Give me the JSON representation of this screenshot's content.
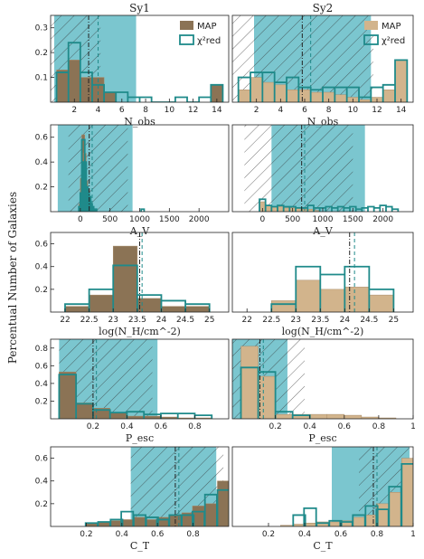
{
  "figure": {
    "ylabel": "Percentual Number of Galaxies",
    "colors": {
      "map_sy1": "#8b7355",
      "map_sy2": "#d2b48c",
      "chi2": "#1f8a8a",
      "shade": "#4fb3bf",
      "dash_line": "#1f8a8a",
      "dashdot_line": "#222222"
    },
    "legend": {
      "map": "MAP",
      "chi": "χ²red"
    }
  },
  "chart_data": [
    {
      "type": "bar",
      "id": "sy1-nobs",
      "title": "Sy1",
      "xlabel": "N_obs",
      "xlim": [
        0,
        15
      ],
      "ylim": [
        0,
        0.35
      ],
      "xticks": [
        2,
        4,
        6,
        8,
        10,
        12,
        14
      ],
      "yticks": [
        0.1,
        0.2,
        0.3
      ],
      "binw": 1,
      "map": {
        "x": [
          1,
          2,
          3,
          4,
          5,
          6,
          7,
          8,
          9,
          10,
          11,
          12,
          13,
          14
        ],
        "y": [
          0.13,
          0.17,
          0.1,
          0.1,
          0.04,
          0,
          0,
          0,
          0,
          0,
          0,
          0,
          0,
          0.07
        ]
      },
      "chi": {
        "x": [
          1,
          2,
          3,
          4,
          5,
          6,
          7,
          8,
          9,
          10,
          11,
          12,
          13,
          14
        ],
        "y": [
          0.12,
          0.24,
          0.12,
          0.07,
          0.04,
          0.04,
          0.02,
          0.02,
          0,
          0,
          0.02,
          0,
          0.02,
          0.07
        ]
      },
      "shade": [
        0.3,
        7.2
      ],
      "dashed": 4.0,
      "dashdot": 3.2,
      "hatch": [
        0,
        4.2
      ],
      "legend": true
    },
    {
      "type": "bar",
      "id": "sy2-nobs",
      "title": "Sy2",
      "xlabel": "N_obs",
      "xlim": [
        0,
        15
      ],
      "ylim": [
        0,
        0.35
      ],
      "xticks": [
        2,
        4,
        6,
        8,
        10,
        12,
        14
      ],
      "yticks": [],
      "binw": 1,
      "map": {
        "x": [
          1,
          2,
          3,
          4,
          5,
          6,
          7,
          8,
          9,
          10,
          11,
          12,
          13,
          14
        ],
        "y": [
          0.05,
          0.1,
          0.08,
          0.07,
          0.05,
          0.05,
          0.04,
          0.04,
          0.03,
          0.02,
          0.01,
          0.02,
          0.05,
          0.17
        ]
      },
      "chi": {
        "x": [
          1,
          2,
          3,
          4,
          5,
          6,
          7,
          8,
          9,
          10,
          11,
          12,
          13,
          14
        ],
        "y": [
          0.1,
          0.12,
          0.12,
          0.08,
          0.1,
          0.06,
          0.05,
          0.06,
          0.06,
          0.06,
          0.02,
          0.06,
          0.07,
          0.17
        ]
      },
      "shade": [
        1.8,
        11.5
      ],
      "dashed": 6.5,
      "dashdot": 5.8,
      "hatch": [
        0,
        11.7
      ],
      "legend": true
    },
    {
      "type": "bar",
      "id": "sy1-av",
      "title": "",
      "xlabel": "A_V",
      "xlim": [
        -500,
        2500
      ],
      "ylim": [
        0,
        0.7
      ],
      "xticks": [
        0,
        500,
        1000,
        1500,
        2000
      ],
      "yticks": [
        0.2,
        0.4,
        0.6
      ],
      "binw": 50,
      "map": {
        "x": [
          0,
          25,
          50,
          75,
          100,
          125,
          150,
          175,
          200,
          225,
          250
        ],
        "y": [
          0.06,
          0.27,
          0.62,
          0.47,
          0.25,
          0.18,
          0.1,
          0.04,
          0.03,
          0.02,
          0.02
        ]
      },
      "chi": {
        "x": [
          0,
          25,
          50,
          75,
          100,
          125,
          150,
          175,
          200,
          225,
          250,
          1050
        ],
        "y": [
          0.04,
          0.15,
          0.58,
          0.4,
          0.2,
          0.15,
          0.12,
          0.06,
          0.04,
          0.02,
          0.02,
          0.02
        ]
      },
      "shade": [
        -380,
        880
      ],
      "dashed": 200,
      "dashdot": 150,
      "hatch": [
        -200,
        800
      ],
      "legend": false
    },
    {
      "type": "bar",
      "id": "sy2-av",
      "title": "",
      "xlabel": "A_V",
      "xlim": [
        -500,
        2500
      ],
      "ylim": [
        0,
        0.7
      ],
      "xticks": [
        0,
        500,
        1000,
        1500,
        2000
      ],
      "yticks": [],
      "binw": 100,
      "map": {
        "x": [
          0,
          100,
          200,
          300,
          400,
          500,
          600,
          700,
          800,
          900
        ],
        "y": [
          0.08,
          0.05,
          0.04,
          0.04,
          0.03,
          0.03,
          0.03,
          0.02,
          0.02,
          0.01
        ]
      },
      "chi": {
        "x": [
          0,
          100,
          200,
          300,
          400,
          500,
          600,
          700,
          800,
          900,
          1000,
          1100,
          1200,
          1300,
          1400,
          1500,
          1600,
          1700,
          1800,
          1900,
          2000,
          2100,
          2200
        ],
        "y": [
          0.1,
          0.05,
          0.04,
          0.05,
          0.04,
          0.04,
          0.03,
          0.03,
          0.05,
          0.03,
          0.03,
          0.04,
          0.03,
          0.04,
          0.03,
          0.04,
          0.02,
          0.03,
          0.04,
          0.03,
          0.05,
          0.04,
          0.02
        ]
      },
      "shade": [
        150,
        1700
      ],
      "dashed": 700,
      "dashdot": 650,
      "hatch": [
        -300,
        1500
      ],
      "legend": false
    },
    {
      "type": "bar",
      "id": "sy1-nh",
      "title": "",
      "xlabel": "log(N_H/cm^-2)",
      "xlim": [
        21.7,
        25.4
      ],
      "ylim": [
        0,
        0.7
      ],
      "xticks": [
        22.0,
        22.5,
        23.0,
        23.5,
        24.0,
        24.5,
        25.0
      ],
      "yticks": [
        0.2,
        0.4,
        0.6
      ],
      "binw": 0.5,
      "map": {
        "x": [
          22.25,
          22.75,
          23.25,
          23.75,
          24.25,
          24.75
        ],
        "y": [
          0.05,
          0.15,
          0.58,
          0.12,
          0.05,
          0.05
        ]
      },
      "chi": {
        "x": [
          22.25,
          22.75,
          23.25,
          23.75,
          24.25,
          24.75
        ],
        "y": [
          0.07,
          0.2,
          0.41,
          0.15,
          0.1,
          0.07
        ]
      },
      "shade": null,
      "dashed": 23.6,
      "dashdot": 23.55,
      "hatch": null,
      "legend": false
    },
    {
      "type": "bar",
      "id": "sy2-nh",
      "title": "",
      "xlabel": "log(N_H/cm^-2)",
      "xlim": [
        21.7,
        25.4
      ],
      "ylim": [
        0,
        0.7
      ],
      "xticks": [
        22.0,
        22.5,
        23.0,
        23.5,
        24.0,
        24.5,
        25.0
      ],
      "yticks": [],
      "binw": 0.5,
      "map": {
        "x": [
          22.75,
          23.25,
          23.75,
          24.25,
          24.75
        ],
        "y": [
          0.1,
          0.28,
          0.2,
          0.22,
          0.15
        ]
      },
      "chi": {
        "x": [
          22.75,
          23.25,
          23.75,
          24.25,
          24.75
        ],
        "y": [
          0.07,
          0.4,
          0.33,
          0.4,
          0.2
        ]
      },
      "shade": null,
      "dashed": 24.2,
      "dashdot": 24.1,
      "hatch": null,
      "legend": false
    },
    {
      "type": "bar",
      "id": "sy1-pesc",
      "title": "",
      "xlabel": "P_esc",
      "xlim": [
        -0.05,
        1.0
      ],
      "ylim": [
        0,
        0.9
      ],
      "xticks": [
        0.2,
        0.4,
        0.6,
        0.8
      ],
      "yticks": [
        0.2,
        0.4,
        0.6,
        0.8
      ],
      "binw": 0.1,
      "map": {
        "x": [
          0.05,
          0.15,
          0.25,
          0.35,
          0.45,
          0.55,
          0.65,
          0.75,
          0.85
        ],
        "y": [
          0.53,
          0.18,
          0.12,
          0.07,
          0.03,
          0.03,
          0.02,
          0.01,
          0.01
        ]
      },
      "chi": {
        "x": [
          0.05,
          0.15,
          0.25,
          0.35,
          0.45,
          0.55,
          0.65,
          0.75,
          0.85
        ],
        "y": [
          0.5,
          0.17,
          0.1,
          0.07,
          0.08,
          0.05,
          0.06,
          0.06,
          0.04
        ]
      },
      "shade": [
        0.0,
        0.58
      ],
      "dashed": 0.22,
      "dashdot": 0.2,
      "hatch": [
        0.0,
        0.55
      ],
      "legend": false
    },
    {
      "type": "bar",
      "id": "sy2-pesc",
      "title": "",
      "xlabel": "P_esc",
      "xlim": [
        -0.05,
        1.0
      ],
      "ylim": [
        0,
        0.9
      ],
      "xticks": [
        0.2,
        0.4,
        0.6,
        0.8,
        1.0
      ],
      "yticks": [],
      "binw": 0.1,
      "map": {
        "x": [
          0.05,
          0.15,
          0.25,
          0.35,
          0.45,
          0.55,
          0.65,
          0.75,
          0.85
        ],
        "y": [
          0.82,
          0.48,
          0.05,
          0.05,
          0.05,
          0.05,
          0.04,
          0.02,
          0.01
        ]
      },
      "chi": {
        "x": [
          0.05,
          0.15,
          0.25,
          0.35
        ],
        "y": [
          0.58,
          0.53,
          0.08,
          0.04
        ]
      },
      "shade": [
        -0.05,
        0.27
      ],
      "dashed": 0.13,
      "dashdot": 0.11,
      "hatch": [
        -0.05,
        0.37
      ],
      "legend": false
    },
    {
      "type": "bar",
      "id": "sy1-ct",
      "title": "",
      "xlabel": "C_T",
      "xlim": [
        0.0,
        1.0
      ],
      "ylim": [
        0,
        0.7
      ],
      "xticks": [
        0.2,
        0.4,
        0.6,
        0.8
      ],
      "yticks": [
        0.2,
        0.4,
        0.6
      ],
      "binw": 0.067,
      "map": {
        "x": [
          0.23,
          0.3,
          0.37,
          0.43,
          0.5,
          0.57,
          0.63,
          0.7,
          0.77,
          0.83,
          0.9,
          0.97
        ],
        "y": [
          0.03,
          0.04,
          0.05,
          0.06,
          0.08,
          0.06,
          0.08,
          0.1,
          0.12,
          0.18,
          0.2,
          0.4
        ]
      },
      "chi": {
        "x": [
          0.23,
          0.3,
          0.37,
          0.43,
          0.5,
          0.57,
          0.63,
          0.7,
          0.77,
          0.83,
          0.9,
          0.97
        ],
        "y": [
          0.03,
          0.04,
          0.06,
          0.13,
          0.1,
          0.08,
          0.06,
          0.1,
          0.1,
          0.13,
          0.28,
          0.32
        ]
      },
      "shade": [
        0.45,
        0.93
      ],
      "dashed": 0.72,
      "dashdot": 0.7,
      "hatch": [
        0.45,
        0.97
      ],
      "legend": false
    },
    {
      "type": "bar",
      "id": "sy2-ct",
      "title": "",
      "xlabel": "C_T",
      "xlim": [
        0.0,
        1.0
      ],
      "ylim": [
        0,
        0.7
      ],
      "xticks": [
        0.2,
        0.4,
        0.6,
        0.8,
        1.0
      ],
      "yticks": [],
      "binw": 0.067,
      "map": {
        "x": [
          0.3,
          0.37,
          0.43,
          0.5,
          0.57,
          0.63,
          0.7,
          0.77,
          0.83,
          0.9,
          0.97
        ],
        "y": [
          0.01,
          0.02,
          0.03,
          0.04,
          0.04,
          0.05,
          0.08,
          0.1,
          0.2,
          0.3,
          0.6
        ]
      },
      "chi": {
        "x": [
          0.37,
          0.43,
          0.5,
          0.57,
          0.63,
          0.7,
          0.77,
          0.83,
          0.9,
          0.97
        ],
        "y": [
          0.1,
          0.16,
          0.03,
          0.05,
          0.04,
          0.1,
          0.18,
          0.15,
          0.35,
          0.55
        ]
      },
      "shade": [
        0.55,
        0.98
      ],
      "dashed": 0.8,
      "dashdot": 0.78,
      "hatch": [
        0.7,
        0.98
      ],
      "legend": false
    }
  ]
}
